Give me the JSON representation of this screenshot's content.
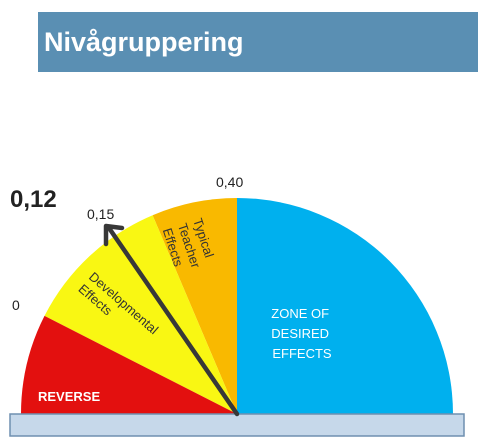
{
  "slide": {
    "title": "Nivågruppering"
  },
  "colors": {
    "banner": "#5A8FB3",
    "reverse": "#E3100F",
    "developmental": "#F9F713",
    "teacher": "#F9B900",
    "desired": "#00B0EE",
    "base": "#C6D8EA",
    "arrow": "#383838"
  },
  "gauge": {
    "segments": [
      {
        "key": "reverse",
        "lines": [
          "REVERSE"
        ]
      },
      {
        "key": "developmental",
        "lines": [
          "Developmental",
          "Effects"
        ]
      },
      {
        "key": "teacher",
        "lines": [
          "Typical",
          "Teacher",
          "Effects"
        ]
      },
      {
        "key": "desired",
        "lines": [
          "ZONE OF",
          "DESIRED",
          "EFFECTS"
        ]
      }
    ],
    "tick_labels": {
      "zero": "0",
      "teacher_threshold": "0,15",
      "hinge": "0,40"
    },
    "pointer_value_label": "0,12"
  }
}
